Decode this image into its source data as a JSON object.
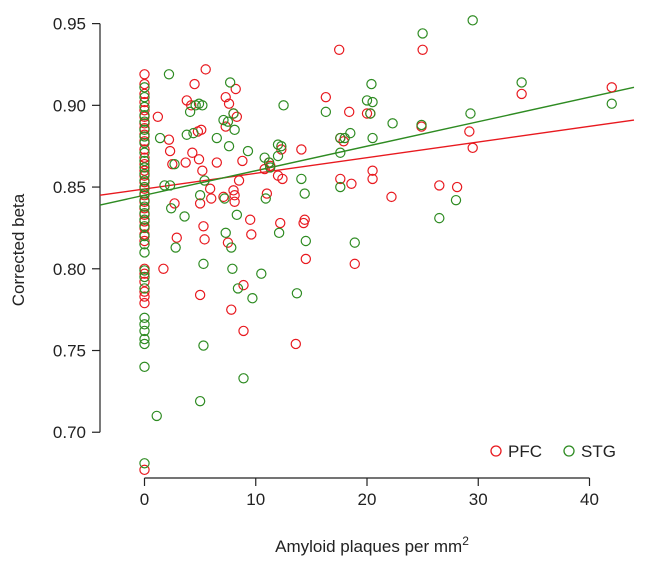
{
  "chart_data": {
    "type": "scatter",
    "xlabel": "Amyloid plaques per mm",
    "xlabel_sup": "2",
    "ylabel": "Corrected beta",
    "xlim": [
      -4,
      44
    ],
    "ylim": [
      0.672,
      0.962
    ],
    "x_ticks": [
      0,
      10,
      20,
      30,
      40
    ],
    "x_tick_labels": [
      "0",
      "10",
      "20",
      "30",
      "40"
    ],
    "y_ticks": [
      0.7,
      0.75,
      0.8,
      0.85,
      0.9,
      0.95
    ],
    "y_tick_labels": [
      "0.70",
      "0.75",
      "0.80",
      "0.85",
      "0.90",
      "0.95"
    ],
    "grid": false,
    "legend_position": "bottom-right",
    "series": [
      {
        "name": "PFC",
        "color": "#e8191f",
        "fit": {
          "x": [
            -4,
            44
          ],
          "y": [
            0.845,
            0.891
          ]
        },
        "points": [
          [
            0,
            0.919
          ],
          [
            0,
            0.913
          ],
          [
            0,
            0.907
          ],
          [
            0,
            0.902
          ],
          [
            0,
            0.897
          ],
          [
            0,
            0.893
          ],
          [
            0,
            0.889
          ],
          [
            0,
            0.886
          ],
          [
            0,
            0.882
          ],
          [
            0,
            0.878
          ],
          [
            0,
            0.873
          ],
          [
            0,
            0.868
          ],
          [
            0,
            0.864
          ],
          [
            0,
            0.86
          ],
          [
            0,
            0.857
          ],
          [
            0,
            0.853
          ],
          [
            0,
            0.849
          ],
          [
            0,
            0.845
          ],
          [
            0,
            0.841
          ],
          [
            0,
            0.837
          ],
          [
            0,
            0.833
          ],
          [
            0,
            0.829
          ],
          [
            0,
            0.825
          ],
          [
            0,
            0.821
          ],
          [
            0,
            0.817
          ],
          [
            0,
            0.8
          ],
          [
            0,
            0.797
          ],
          [
            0,
            0.792
          ],
          [
            0,
            0.786
          ],
          [
            0,
            0.783
          ],
          [
            0,
            0.779
          ],
          [
            0,
            0.677
          ],
          [
            1.2,
            0.893
          ],
          [
            1.7,
            0.8
          ],
          [
            2.2,
            0.879
          ],
          [
            2.3,
            0.872
          ],
          [
            2.5,
            0.864
          ],
          [
            2.7,
            0.84
          ],
          [
            2.9,
            0.819
          ],
          [
            3.7,
            0.865
          ],
          [
            3.8,
            0.903
          ],
          [
            4.2,
            0.9
          ],
          [
            4.3,
            0.871
          ],
          [
            4.5,
            0.913
          ],
          [
            4.8,
            0.884
          ],
          [
            4.9,
            0.867
          ],
          [
            5.0,
            0.84
          ],
          [
            5.0,
            0.784
          ],
          [
            5.1,
            0.885
          ],
          [
            5.2,
            0.86
          ],
          [
            5.3,
            0.826
          ],
          [
            5.4,
            0.818
          ],
          [
            5.5,
            0.922
          ],
          [
            5.9,
            0.849
          ],
          [
            6.0,
            0.843
          ],
          [
            6.5,
            0.865
          ],
          [
            7.1,
            0.844
          ],
          [
            7.3,
            0.905
          ],
          [
            7.3,
            0.887
          ],
          [
            7.5,
            0.816
          ],
          [
            7.6,
            0.901
          ],
          [
            7.8,
            0.775
          ],
          [
            8.0,
            0.895
          ],
          [
            8.0,
            0.848
          ],
          [
            8.1,
            0.845
          ],
          [
            8.1,
            0.841
          ],
          [
            8.2,
            0.91
          ],
          [
            8.3,
            0.893
          ],
          [
            8.5,
            0.854
          ],
          [
            8.8,
            0.866
          ],
          [
            8.9,
            0.79
          ],
          [
            8.9,
            0.762
          ],
          [
            9.5,
            0.83
          ],
          [
            9.6,
            0.821
          ],
          [
            10.8,
            0.861
          ],
          [
            11.0,
            0.846
          ],
          [
            11.2,
            0.865
          ],
          [
            11.3,
            0.863
          ],
          [
            12.0,
            0.857
          ],
          [
            12.2,
            0.828
          ],
          [
            12.3,
            0.873
          ],
          [
            12.4,
            0.855
          ],
          [
            13.6,
            0.754
          ],
          [
            14.1,
            0.873
          ],
          [
            14.3,
            0.828
          ],
          [
            14.4,
            0.83
          ],
          [
            14.5,
            0.806
          ],
          [
            16.3,
            0.905
          ],
          [
            17.5,
            0.934
          ],
          [
            17.6,
            0.88
          ],
          [
            17.6,
            0.855
          ],
          [
            17.9,
            0.878
          ],
          [
            18.4,
            0.896
          ],
          [
            18.6,
            0.852
          ],
          [
            18.9,
            0.803
          ],
          [
            20.0,
            0.895
          ],
          [
            20.3,
            0.895
          ],
          [
            20.5,
            0.86
          ],
          [
            20.5,
            0.855
          ],
          [
            22.2,
            0.844
          ],
          [
            24.9,
            0.887
          ],
          [
            25.0,
            0.934
          ],
          [
            26.5,
            0.851
          ],
          [
            28.1,
            0.85
          ],
          [
            29.2,
            0.884
          ],
          [
            29.5,
            0.874
          ],
          [
            33.9,
            0.907
          ],
          [
            42.0,
            0.911
          ]
        ]
      },
      {
        "name": "STG",
        "color": "#2e8b22",
        "fit": {
          "x": [
            -4,
            44
          ],
          "y": [
            0.839,
            0.911
          ]
        },
        "points": [
          [
            0,
            0.911
          ],
          [
            0,
            0.905
          ],
          [
            0,
            0.899
          ],
          [
            0,
            0.894
          ],
          [
            0,
            0.89
          ],
          [
            0,
            0.885
          ],
          [
            0,
            0.881
          ],
          [
            0,
            0.877
          ],
          [
            0,
            0.871
          ],
          [
            0,
            0.866
          ],
          [
            0,
            0.862
          ],
          [
            0,
            0.858
          ],
          [
            0,
            0.854
          ],
          [
            0,
            0.85
          ],
          [
            0,
            0.846
          ],
          [
            0,
            0.842
          ],
          [
            0,
            0.838
          ],
          [
            0,
            0.834
          ],
          [
            0,
            0.83
          ],
          [
            0,
            0.826
          ],
          [
            0,
            0.82
          ],
          [
            0,
            0.815
          ],
          [
            0,
            0.81
          ],
          [
            0,
            0.799
          ],
          [
            0,
            0.795
          ],
          [
            0,
            0.788
          ],
          [
            0,
            0.77
          ],
          [
            0,
            0.766
          ],
          [
            0,
            0.762
          ],
          [
            0,
            0.757
          ],
          [
            0,
            0.754
          ],
          [
            0,
            0.74
          ],
          [
            0,
            0.681
          ],
          [
            1.1,
            0.71
          ],
          [
            1.4,
            0.88
          ],
          [
            1.8,
            0.851
          ],
          [
            2.2,
            0.919
          ],
          [
            2.3,
            0.851
          ],
          [
            2.4,
            0.837
          ],
          [
            2.7,
            0.864
          ],
          [
            2.8,
            0.813
          ],
          [
            3.6,
            0.832
          ],
          [
            3.8,
            0.882
          ],
          [
            4.1,
            0.896
          ],
          [
            4.4,
            0.883
          ],
          [
            4.6,
            0.9
          ],
          [
            4.9,
            0.901
          ],
          [
            5.0,
            0.845
          ],
          [
            5.0,
            0.719
          ],
          [
            5.2,
            0.9
          ],
          [
            5.3,
            0.803
          ],
          [
            5.3,
            0.753
          ],
          [
            5.4,
            0.854
          ],
          [
            6.5,
            0.88
          ],
          [
            7.1,
            0.891
          ],
          [
            7.2,
            0.843
          ],
          [
            7.3,
            0.822
          ],
          [
            7.5,
            0.89
          ],
          [
            7.6,
            0.875
          ],
          [
            7.7,
            0.914
          ],
          [
            7.8,
            0.813
          ],
          [
            7.9,
            0.8
          ],
          [
            8.0,
            0.895
          ],
          [
            8.1,
            0.885
          ],
          [
            8.3,
            0.833
          ],
          [
            8.4,
            0.788
          ],
          [
            8.9,
            0.733
          ],
          [
            9.3,
            0.872
          ],
          [
            9.7,
            0.782
          ],
          [
            10.5,
            0.797
          ],
          [
            10.8,
            0.868
          ],
          [
            10.9,
            0.843
          ],
          [
            11.2,
            0.865
          ],
          [
            11.3,
            0.862
          ],
          [
            12.0,
            0.876
          ],
          [
            12.0,
            0.869
          ],
          [
            12.1,
            0.822
          ],
          [
            12.3,
            0.875
          ],
          [
            12.5,
            0.9
          ],
          [
            13.7,
            0.785
          ],
          [
            14.1,
            0.855
          ],
          [
            14.4,
            0.846
          ],
          [
            14.5,
            0.817
          ],
          [
            16.3,
            0.896
          ],
          [
            17.6,
            0.88
          ],
          [
            17.6,
            0.871
          ],
          [
            17.6,
            0.85
          ],
          [
            18.0,
            0.88
          ],
          [
            18.5,
            0.883
          ],
          [
            18.9,
            0.816
          ],
          [
            20.0,
            0.903
          ],
          [
            20.3,
            0.895
          ],
          [
            20.4,
            0.913
          ],
          [
            20.5,
            0.88
          ],
          [
            20.5,
            0.902
          ],
          [
            22.3,
            0.889
          ],
          [
            24.9,
            0.888
          ],
          [
            25.0,
            0.944
          ],
          [
            26.5,
            0.831
          ],
          [
            28.0,
            0.842
          ],
          [
            29.3,
            0.895
          ],
          [
            29.5,
            0.952
          ],
          [
            33.9,
            0.914
          ],
          [
            42.0,
            0.901
          ]
        ]
      }
    ]
  }
}
